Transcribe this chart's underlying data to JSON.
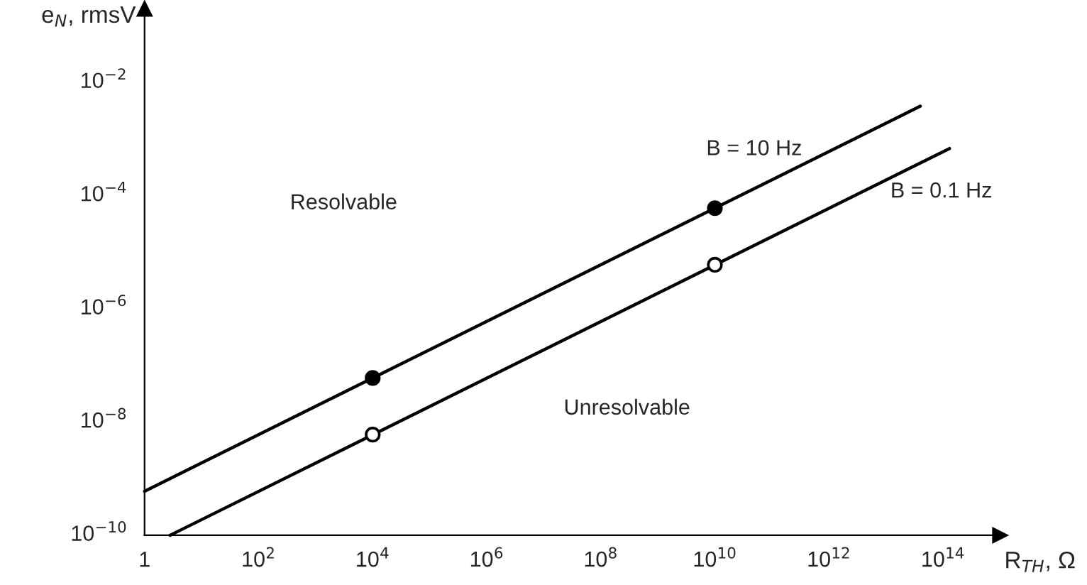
{
  "chart_data": {
    "type": "line",
    "xlabel": "R$_{TH}$, Ω",
    "ylabel": "e$_{N}$, rmsV",
    "log": "xy",
    "grid": false,
    "legend": false,
    "marker": "none",
    "line_style": "solid",
    "xlim": [
      1,
      1000000000000000.0
    ],
    "ylim": [
      1e-10,
      0.2
    ],
    "xticks": [
      {
        "value": 1,
        "label": "1"
      },
      {
        "value": 100,
        "label": "10$^{2}$"
      },
      {
        "value": 10000,
        "label": "10$^{4}$"
      },
      {
        "value": 1000000,
        "label": "10$^{6}$"
      },
      {
        "value": 100000000,
        "label": "10$^{8}$"
      },
      {
        "value": 10000000000,
        "label": "10$^{10}$"
      },
      {
        "value": 1000000000000,
        "label": "10$^{12}$"
      },
      {
        "value": 100000000000000,
        "label": "10$^{14}$"
      }
    ],
    "yticks": [
      {
        "value": 1e-10,
        "label": "10$^{−10}$"
      },
      {
        "value": 1e-08,
        "label": "10$^{−8}$"
      },
      {
        "value": 1e-06,
        "label": "10$^{−6}$"
      },
      {
        "value": 0.0001,
        "label": "10$^{−4}$"
      },
      {
        "value": 0.01,
        "label": "10$^{−2}$"
      }
    ],
    "series": [
      {
        "name": "B = 10 Hz",
        "type": "line",
        "color": "#000000",
        "x": [
          1,
          40000000000000.0
        ],
        "values": [
          6e-10,
          0.0038
        ]
      },
      {
        "name": "B = 0.1 Hz",
        "type": "line",
        "color": "#000000",
        "x": [
          2.8,
          130000000000000.0
        ],
        "values": [
          1e-10,
          0.00068
        ]
      },
      {
        "type": "scatter",
        "marker": "circle",
        "color": "#000000",
        "x": [
          10000,
          10000000000
        ],
        "values": [
          6e-08,
          6e-05
        ]
      },
      {
        "type": "scatter",
        "marker": "circle",
        "color": "#ffffff",
        "x": [
          10000,
          10000000000
        ],
        "values": [
          6e-09,
          6e-06
        ]
      }
    ],
    "annotations": [
      "Resolvable",
      "Unresolvable"
    ]
  }
}
